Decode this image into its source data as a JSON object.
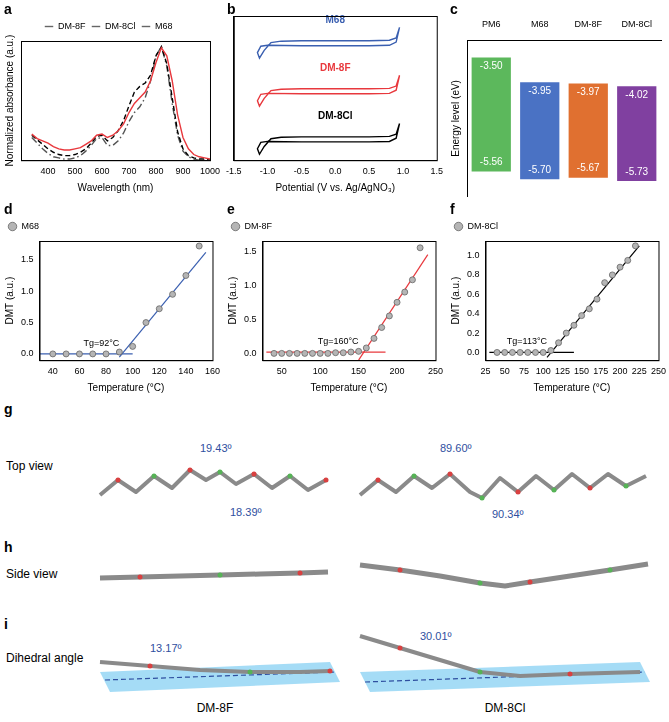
{
  "chart_data": [
    {
      "panel": "a",
      "type": "line",
      "x_label": "Wavelength (nm)",
      "y_label": "Normalized absorbance (a.u.)",
      "x": [
        340,
        360,
        380,
        400,
        420,
        440,
        460,
        480,
        500,
        520,
        540,
        560,
        580,
        600,
        620,
        640,
        660,
        680,
        700,
        720,
        740,
        760,
        780,
        800,
        820,
        840,
        860,
        880,
        900,
        920,
        940,
        960,
        980,
        1000
      ],
      "series": [
        {
          "name": "DM-8F",
          "color": "#e8383d",
          "line_style": "solid",
          "values": [
            0.23,
            0.19,
            0.17,
            0.15,
            0.12,
            0.1,
            0.09,
            0.09,
            0.1,
            0.11,
            0.14,
            0.17,
            0.22,
            0.23,
            0.2,
            0.22,
            0.26,
            0.32,
            0.42,
            0.5,
            0.55,
            0.6,
            0.7,
            0.86,
            0.99,
            0.92,
            0.7,
            0.4,
            0.2,
            0.1,
            0.05,
            0.03,
            0.02,
            0.01
          ]
        },
        {
          "name": "DM-8Cl",
          "color": "#000000",
          "line_style": "dashed",
          "values": [
            0.22,
            0.18,
            0.14,
            0.1,
            0.07,
            0.05,
            0.04,
            0.04,
            0.05,
            0.07,
            0.1,
            0.15,
            0.21,
            0.22,
            0.17,
            0.2,
            0.26,
            0.35,
            0.48,
            0.6,
            0.65,
            0.68,
            0.75,
            0.92,
            1.0,
            0.85,
            0.55,
            0.25,
            0.1,
            0.04,
            0.02,
            0.01,
            0.01,
            0.0
          ]
        },
        {
          "name": "M68",
          "color": "#555555",
          "line_style": "dashdot",
          "values": [
            0.2,
            0.15,
            0.1,
            0.06,
            0.03,
            0.02,
            0.01,
            0.01,
            0.02,
            0.04,
            0.08,
            0.13,
            0.19,
            0.2,
            0.13,
            0.13,
            0.17,
            0.24,
            0.34,
            0.42,
            0.47,
            0.55,
            0.7,
            0.92,
            1.0,
            0.83,
            0.5,
            0.22,
            0.08,
            0.03,
            0.01,
            0.0,
            0.0,
            0.0
          ]
        }
      ],
      "xlim": [
        300,
        1000
      ],
      "xticks": [
        400,
        500,
        600,
        700,
        800,
        900,
        1000
      ],
      "ylim": [
        0,
        1.05
      ],
      "yticks": [],
      "tick_labels": "x",
      "legend": "top",
      "grid": false
    },
    {
      "panel": "b",
      "type": "line",
      "x_label": "Potential (V vs. Ag/AgNO₃)",
      "series": [
        {
          "name": "M68",
          "color": "#3a5fb0",
          "line_style": "solid",
          "x": [
            0.95,
            0.9,
            0.8,
            0.5,
            0.0,
            -0.5,
            -0.8,
            -0.95,
            -1.05,
            -1.12,
            -1.15,
            -1.1,
            -1.0,
            -0.5,
            0.0,
            0.5,
            0.8,
            0.9,
            0.95
          ],
          "values": [
            2.75,
            2.52,
            2.47,
            2.46,
            2.46,
            2.46,
            2.45,
            2.42,
            2.25,
            2.08,
            2.2,
            2.34,
            2.36,
            2.35,
            2.35,
            2.35,
            2.36,
            2.43,
            2.75
          ]
        },
        {
          "name": "DM-8F",
          "color": "#e8383d",
          "line_style": "solid",
          "x": [
            0.95,
            0.9,
            0.8,
            0.5,
            0.0,
            -0.5,
            -0.8,
            -0.95,
            -1.05,
            -1.12,
            -1.15,
            -1.1,
            -1.0,
            -0.5,
            0.0,
            0.5,
            0.8,
            0.9,
            0.95
          ],
          "values": [
            1.7,
            1.47,
            1.42,
            1.41,
            1.41,
            1.41,
            1.4,
            1.37,
            1.2,
            1.03,
            1.15,
            1.29,
            1.31,
            1.3,
            1.3,
            1.3,
            1.31,
            1.38,
            1.7
          ]
        },
        {
          "name": "DM-8Cl",
          "color": "#000000",
          "line_style": "solid",
          "x": [
            0.95,
            0.9,
            0.8,
            0.5,
            0.0,
            -0.5,
            -0.8,
            -0.95,
            -1.05,
            -1.12,
            -1.15,
            -1.1,
            -1.0,
            -0.5,
            0.0,
            0.5,
            0.8,
            0.9,
            0.95
          ],
          "values": [
            0.65,
            0.42,
            0.37,
            0.36,
            0.36,
            0.36,
            0.35,
            0.32,
            0.15,
            -0.02,
            0.1,
            0.24,
            0.26,
            0.25,
            0.25,
            0.25,
            0.26,
            0.33,
            0.65
          ]
        }
      ],
      "xlim": [
        -1.5,
        1.5
      ],
      "xticks": [
        -1.5,
        {
          "value": -1.0,
          "label": "-1.0"
        },
        -0.5,
        {
          "value": 0,
          "label": "0.0"
        },
        0.5,
        {
          "value": 1.0,
          "label": "1.0"
        },
        1.5
      ],
      "ylim": [
        -0.15,
        3.0
      ],
      "yticks": [],
      "tick_labels": "x",
      "grid": false
    },
    {
      "panel": "c",
      "type": "bar",
      "y_label": "Energy level (eV)",
      "categories": [
        "PM6",
        "M68",
        "DM-8F",
        "DM-8Cl"
      ],
      "colors": [
        "#5cb85c",
        "#4a72c4",
        "#e07030",
        "#8040a0"
      ],
      "lumo": {
        "values": [
          -3.5,
          -3.95,
          -3.97,
          -4.02
        ],
        "value_labels": [
          "-3.50",
          "-3.95",
          "-3.97",
          "-4.02"
        ]
      },
      "homo": {
        "values": [
          -5.56,
          -5.7,
          -5.67,
          -5.73
        ],
        "value_labels": [
          "-5.56",
          "-5.70",
          "-5.67",
          "-5.73"
        ]
      },
      "ylim": [
        -6.0,
        -3.2
      ],
      "yticks": [],
      "tick_labels": "x",
      "data_labels": true,
      "grid": false
    },
    {
      "panel": "d",
      "type": "scatter",
      "x_label": "Temperature (°C)",
      "y_label": "DMT (a.u.)",
      "annotation": "Tg=92°C",
      "x": [
        40,
        50,
        60,
        70,
        80,
        90,
        100,
        110,
        120,
        130,
        140,
        150
      ],
      "series": [
        {
          "name": "M68",
          "color": "#b5b5b5",
          "marker": "circle",
          "values": [
            0,
            0,
            0,
            0,
            0,
            0.03,
            0.12,
            0.5,
            0.72,
            0.95,
            1.25,
            1.72
          ]
        }
      ],
      "fit_lines": {
        "color": "#3a5fb0",
        "lines": [
          {
            "x": [
              30,
              100
            ],
            "values": [
              0,
              0
            ]
          },
          {
            "x": [
              90,
              155
            ],
            "values": [
              -0.05,
              1.62
            ]
          }
        ]
      },
      "xlim": [
        30,
        160
      ],
      "xticks": [
        40,
        60,
        80,
        100,
        120,
        140,
        160
      ],
      "ylim": [
        -0.1,
        1.8
      ],
      "yticks": [
        {
          "value": 0,
          "label": "0.0"
        },
        0.5,
        {
          "value": 1,
          "label": "1.0"
        },
        1.5
      ],
      "legend": "top-left",
      "grid": false
    },
    {
      "panel": "e",
      "type": "scatter",
      "x_label": "Temperature (°C)",
      "y_label": "DMT (a.u.)",
      "annotation": "Tg=160°C",
      "x": [
        40,
        50,
        60,
        70,
        80,
        90,
        100,
        110,
        120,
        130,
        140,
        150,
        160,
        170,
        180,
        190,
        200,
        210,
        220,
        230
      ],
      "series": [
        {
          "name": "DM-8F",
          "color": "#b5b5b5",
          "marker": "circle",
          "values": [
            0,
            0,
            0,
            0,
            0,
            0,
            0,
            0,
            0.01,
            0.01,
            0.02,
            0.03,
            0.08,
            0.22,
            0.38,
            0.55,
            0.75,
            0.9,
            1.08,
            1.55
          ]
        }
      ],
      "fit_lines": {
        "color": "#e8383d",
        "lines": [
          {
            "x": [
              30,
              185
            ],
            "values": [
              0.02,
              0.02
            ]
          },
          {
            "x": [
              150,
              240
            ],
            "values": [
              -0.1,
              1.45
            ]
          }
        ]
      },
      "xlim": [
        25,
        250
      ],
      "xticks": [
        50,
        100,
        150,
        200,
        250
      ],
      "ylim": [
        -0.1,
        1.65
      ],
      "yticks": [
        {
          "value": 0,
          "label": "0.0"
        },
        0.5,
        {
          "value": 1,
          "label": "1.0"
        },
        1.5
      ],
      "legend": "top-left",
      "grid": false
    },
    {
      "panel": "f",
      "type": "scatter",
      "x_label": "Temperature (°C)",
      "y_label": "DMT (a.u.)",
      "annotation": "Tg=113°C",
      "x": [
        40,
        50,
        60,
        70,
        80,
        90,
        100,
        110,
        120,
        130,
        140,
        150,
        160,
        170,
        180,
        190,
        200,
        210,
        220
      ],
      "series": [
        {
          "name": "DM-8Cl",
          "color": "#b5b5b5",
          "marker": "circle",
          "values": [
            0,
            0,
            0,
            0,
            0,
            0,
            0,
            0.02,
            0.1,
            0.2,
            0.28,
            0.38,
            0.45,
            0.55,
            0.72,
            0.8,
            0.88,
            0.95,
            1.1
          ]
        }
      ],
      "fit_lines": {
        "color": "#000000",
        "lines": [
          {
            "x": [
              30,
              140
            ],
            "values": [
              0,
              0
            ]
          },
          {
            "x": [
              105,
              225
            ],
            "values": [
              -0.05,
              1.1
            ]
          }
        ]
      },
      "xlim": [
        25,
        250
      ],
      "xticks": [
        25,
        50,
        75,
        100,
        125,
        150,
        175,
        200,
        225,
        250
      ],
      "ylim": [
        -0.08,
        1.15
      ],
      "yticks": [
        {
          "value": 0,
          "label": "0.0"
        },
        0.2,
        0.4,
        0.6,
        0.8,
        {
          "value": 1,
          "label": "1.0"
        }
      ],
      "legend": "top-left",
      "grid": false
    }
  ],
  "structures": {
    "names": [
      "DM-8F",
      "DM-8Cl"
    ],
    "rows": [
      {
        "panel": "g",
        "label": "Top view",
        "angles": [
          [
            "19.43º",
            "18.39º"
          ],
          [
            "89.60º",
            "90.34º"
          ]
        ]
      },
      {
        "panel": "h",
        "label": "Side view",
        "angles": [
          [],
          []
        ]
      },
      {
        "panel": "i",
        "label": "Dihedral angle",
        "angles": [
          [
            "13.17º"
          ],
          [
            "30.01º"
          ]
        ]
      }
    ]
  }
}
